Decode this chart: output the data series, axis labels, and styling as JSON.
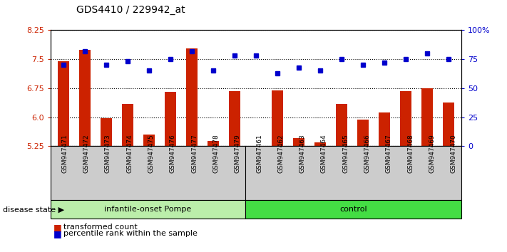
{
  "title": "GDS4410 / 229942_at",
  "samples": [
    "GSM947471",
    "GSM947472",
    "GSM947473",
    "GSM947474",
    "GSM947475",
    "GSM947476",
    "GSM947477",
    "GSM947478",
    "GSM947479",
    "GSM947461",
    "GSM947462",
    "GSM947463",
    "GSM947464",
    "GSM947465",
    "GSM947466",
    "GSM947467",
    "GSM947468",
    "GSM947469",
    "GSM947470"
  ],
  "bar_values": [
    7.45,
    7.75,
    5.97,
    6.35,
    5.55,
    6.65,
    7.78,
    5.38,
    6.68,
    5.22,
    6.7,
    5.45,
    5.35,
    6.35,
    5.93,
    6.12,
    6.68,
    6.75,
    6.38
  ],
  "dot_values": [
    70,
    82,
    70,
    73,
    65,
    75,
    82,
    65,
    78,
    78,
    63,
    68,
    65,
    75,
    70,
    72,
    75,
    80,
    75
  ],
  "group1_label": "infantile-onset Pompe",
  "group2_label": "control",
  "group1_count": 9,
  "group2_count": 10,
  "ylim_left": [
    5.25,
    8.25
  ],
  "ylim_right": [
    0,
    100
  ],
  "yticks_left": [
    5.25,
    6.0,
    6.75,
    7.5,
    8.25
  ],
  "yticks_right": [
    0,
    25,
    50,
    75,
    100
  ],
  "bar_color": "#cc2200",
  "dot_color": "#0000cc",
  "group1_color": "#bbeeaa",
  "group2_color": "#44dd44",
  "legend_bar": "transformed count",
  "legend_dot": "percentile rank within the sample",
  "disease_state_label": "disease state",
  "xtick_bg": "#cccccc",
  "plot_bg": "#ffffff",
  "fig_bg": "#ffffff"
}
